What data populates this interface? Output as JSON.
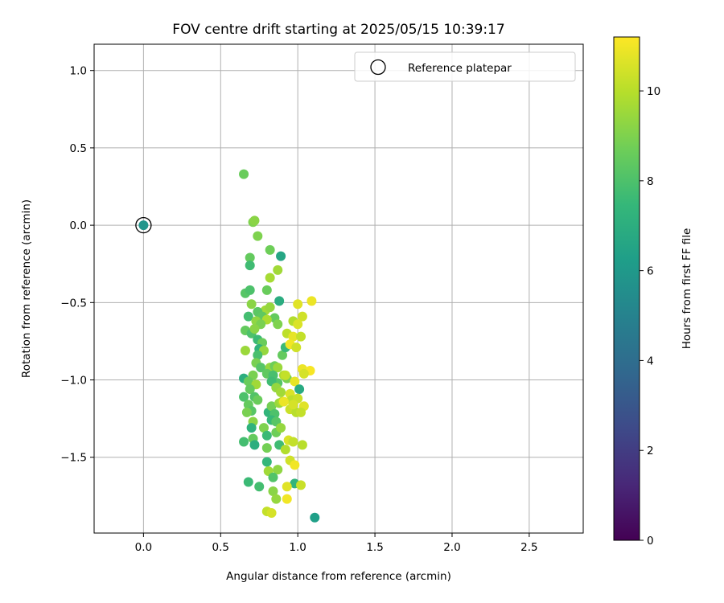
{
  "chart_data": {
    "type": "scatter",
    "title": "FOV centre drift starting at 2025/05/15 10:39:17",
    "xlabel": "Angular distance from reference (arcmin)",
    "ylabel": "Rotation from reference (arcmin)",
    "xlim": [
      -0.32,
      2.85
    ],
    "ylim": [
      -1.99,
      1.17
    ],
    "xticks": [
      0.0,
      0.5,
      1.0,
      1.5,
      2.0,
      2.5
    ],
    "xtick_labels": [
      "0.0",
      "0.5",
      "1.0",
      "1.5",
      "2.0",
      "2.5"
    ],
    "yticks": [
      -1.5,
      -1.0,
      -0.5,
      0.0,
      0.5,
      1.0
    ],
    "ytick_labels": [
      "−1.5",
      "−1.0",
      "−0.5",
      "0.0",
      "0.5",
      "1.0"
    ],
    "grid": true,
    "legend": {
      "position": "top-right",
      "entries": [
        "Reference platepar"
      ]
    },
    "colorbar": {
      "label": "Hours from first FF file",
      "colormap": "viridis",
      "range": [
        0,
        11.2
      ],
      "ticks": [
        0,
        2,
        4,
        6,
        8,
        10
      ],
      "tick_labels": [
        "0",
        "2",
        "4",
        "6",
        "8",
        "10"
      ]
    },
    "reference": {
      "x": 0.0,
      "y": 0.0,
      "t": 5.8
    },
    "series": [
      {
        "points": [
          [
            0.65,
            0.33,
            8.6
          ],
          [
            0.71,
            0.02,
            9.0
          ],
          [
            0.72,
            0.03,
            9.2
          ],
          [
            0.74,
            -0.07,
            9.0
          ],
          [
            0.82,
            -0.16,
            8.7
          ],
          [
            0.89,
            -0.2,
            6.6
          ],
          [
            0.69,
            -0.21,
            8.5
          ],
          [
            0.69,
            -0.26,
            7.7
          ],
          [
            0.87,
            -0.29,
            9.6
          ],
          [
            0.82,
            -0.34,
            9.7
          ],
          [
            0.8,
            -0.42,
            8.6
          ],
          [
            0.66,
            -0.44,
            8.2
          ],
          [
            0.69,
            -0.42,
            8.0
          ],
          [
            0.88,
            -0.49,
            6.9
          ],
          [
            0.7,
            -0.51,
            9.2
          ],
          [
            0.79,
            -0.55,
            9.6
          ],
          [
            0.74,
            -0.56,
            8.3
          ],
          [
            0.82,
            -0.53,
            9.4
          ],
          [
            0.68,
            -0.59,
            7.8
          ],
          [
            0.77,
            -0.59,
            8.4
          ],
          [
            0.85,
            -0.6,
            8.5
          ],
          [
            0.73,
            -0.62,
            9.3
          ],
          [
            0.8,
            -0.61,
            9.8
          ],
          [
            0.76,
            -0.64,
            8.9
          ],
          [
            0.87,
            -0.64,
            9.0
          ],
          [
            0.66,
            -0.68,
            8.5
          ],
          [
            0.7,
            -0.7,
            8.0
          ],
          [
            0.72,
            -0.67,
            9.2
          ],
          [
            0.74,
            -0.74,
            7.6
          ],
          [
            0.77,
            -0.76,
            8.6
          ],
          [
            0.75,
            -0.8,
            7.2
          ],
          [
            0.78,
            -0.81,
            9.4
          ],
          [
            0.66,
            -0.81,
            9.5
          ],
          [
            0.74,
            -0.84,
            7.9
          ],
          [
            0.9,
            -0.84,
            8.5
          ],
          [
            0.92,
            -0.79,
            7.6
          ],
          [
            0.73,
            -0.89,
            8.9
          ],
          [
            0.76,
            -0.92,
            8.2
          ],
          [
            0.82,
            -0.92,
            9.4
          ],
          [
            0.85,
            -0.91,
            8.7
          ],
          [
            0.87,
            -0.92,
            9.5
          ],
          [
            0.8,
            -0.96,
            8.4
          ],
          [
            0.84,
            -0.97,
            7.9
          ],
          [
            0.65,
            -0.99,
            7.0
          ],
          [
            0.71,
            -0.97,
            8.9
          ],
          [
            0.68,
            -1.01,
            8.6
          ],
          [
            0.73,
            -1.03,
            9.6
          ],
          [
            0.91,
            -0.97,
            9.8
          ],
          [
            0.93,
            -0.99,
            8.9
          ],
          [
            0.87,
            -1.02,
            8.2
          ],
          [
            0.83,
            -1.01,
            7.7
          ],
          [
            0.69,
            -1.06,
            8.5
          ],
          [
            0.86,
            -1.05,
            9.4
          ],
          [
            0.89,
            -1.08,
            9.6
          ],
          [
            0.72,
            -1.11,
            8.1
          ],
          [
            0.74,
            -1.13,
            8.6
          ],
          [
            0.65,
            -1.11,
            8.0
          ],
          [
            0.68,
            -1.16,
            8.5
          ],
          [
            0.7,
            -1.2,
            8.2
          ],
          [
            0.67,
            -1.21,
            8.9
          ],
          [
            0.81,
            -1.21,
            7.3
          ],
          [
            0.83,
            -1.17,
            8.8
          ],
          [
            0.88,
            -1.15,
            9.5
          ],
          [
            0.9,
            -1.14,
            9.9
          ],
          [
            0.85,
            -1.22,
            8.0
          ],
          [
            0.95,
            -1.19,
            10.3
          ],
          [
            0.99,
            -1.21,
            10.0
          ],
          [
            0.83,
            -1.26,
            7.5
          ],
          [
            0.86,
            -1.27,
            8.2
          ],
          [
            0.71,
            -1.27,
            9.2
          ],
          [
            0.7,
            -1.31,
            7.2
          ],
          [
            0.78,
            -1.31,
            9.0
          ],
          [
            0.8,
            -1.36,
            7.6
          ],
          [
            0.86,
            -1.34,
            8.7
          ],
          [
            0.89,
            -1.31,
            9.4
          ],
          [
            0.65,
            -1.4,
            7.8
          ],
          [
            0.71,
            -1.38,
            8.5
          ],
          [
            0.72,
            -1.42,
            7.0
          ],
          [
            0.8,
            -1.44,
            8.8
          ],
          [
            0.88,
            -1.42,
            7.7
          ],
          [
            0.92,
            -1.45,
            9.9
          ],
          [
            0.94,
            -1.39,
            10.6
          ],
          [
            0.97,
            -1.4,
            10.2
          ],
          [
            1.03,
            -1.42,
            10.0
          ],
          [
            0.95,
            -1.52,
            10.4
          ],
          [
            0.98,
            -1.55,
            11.0
          ],
          [
            0.8,
            -1.53,
            7.4
          ],
          [
            0.81,
            -1.59,
            9.6
          ],
          [
            0.87,
            -1.58,
            9.3
          ],
          [
            0.84,
            -1.63,
            8.1
          ],
          [
            0.68,
            -1.66,
            7.6
          ],
          [
            0.75,
            -1.69,
            7.8
          ],
          [
            0.98,
            -1.67,
            7.3
          ],
          [
            1.02,
            -1.68,
            10.3
          ],
          [
            0.93,
            -1.69,
            10.7
          ],
          [
            0.84,
            -1.72,
            9.2
          ],
          [
            0.86,
            -1.77,
            9.4
          ],
          [
            0.93,
            -1.77,
            11.0
          ],
          [
            0.8,
            -1.85,
            10.2
          ],
          [
            0.83,
            -1.86,
            10.5
          ],
          [
            1.11,
            -1.89,
            6.3
          ],
          [
            1.0,
            -0.51,
            10.7
          ],
          [
            1.09,
            -0.49,
            10.9
          ],
          [
            1.03,
            -0.59,
            10.4
          ],
          [
            0.97,
            -0.62,
            9.9
          ],
          [
            1.0,
            -0.64,
            10.6
          ],
          [
            0.93,
            -0.7,
            10.1
          ],
          [
            0.97,
            -0.72,
            10.8
          ],
          [
            1.02,
            -0.72,
            10.2
          ],
          [
            0.95,
            -0.77,
            11.0
          ],
          [
            0.99,
            -0.79,
            10.4
          ],
          [
            1.03,
            -0.93,
            10.9
          ],
          [
            1.08,
            -0.94,
            11.1
          ],
          [
            1.04,
            -0.96,
            10.5
          ],
          [
            0.92,
            -0.97,
            10.2
          ],
          [
            0.98,
            -1.01,
            10.8
          ],
          [
            1.01,
            -1.06,
            6.8
          ],
          [
            0.95,
            -1.09,
            10.6
          ],
          [
            0.96,
            -1.13,
            10.1
          ],
          [
            1.0,
            -1.12,
            10.3
          ],
          [
            1.04,
            -1.17,
            10.7
          ],
          [
            1.02,
            -1.21,
            10.2
          ],
          [
            0.91,
            -1.14,
            10.9
          ],
          [
            0.97,
            -1.16,
            10.5
          ]
        ]
      }
    ]
  }
}
